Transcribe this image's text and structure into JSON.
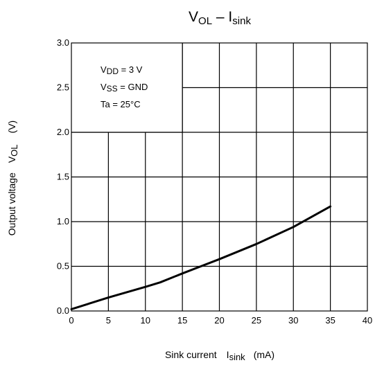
{
  "chart_data": {
    "type": "line",
    "title": {
      "main": "V",
      "main_sub": "OL",
      "sep": " – ",
      "second": "I",
      "second_sub": "sink"
    },
    "xlabel": {
      "prefix": "Sink current",
      "symbol": "I",
      "symbol_sub": "sink",
      "unit": "(mA)"
    },
    "ylabel": {
      "prefix": "Output voltage",
      "symbol": "V",
      "symbol_sub": "OL",
      "unit": "(V)"
    },
    "xlim": [
      0,
      40
    ],
    "ylim": [
      0,
      3.0
    ],
    "x_ticks": [
      "0",
      "5",
      "10",
      "15",
      "20",
      "25",
      "30",
      "35",
      "40"
    ],
    "y_ticks": [
      "0.0",
      "0.5",
      "1.0",
      "1.5",
      "2.0",
      "2.5",
      "3.0"
    ],
    "grid": true,
    "conditions": [
      {
        "symbol": "V",
        "sub": "DD",
        "rest": " = 3 V"
      },
      {
        "symbol": "V",
        "sub": "SS",
        "rest": " = GND"
      },
      {
        "symbol": "Ta",
        "sub": "",
        "rest": " = 25°C"
      }
    ],
    "series": [
      {
        "x": [
          0,
          5,
          10,
          12,
          15,
          17.5,
          20,
          25,
          30,
          35
        ],
        "y": [
          0.02,
          0.15,
          0.27,
          0.32,
          0.42,
          0.5,
          0.58,
          0.75,
          0.94,
          1.17
        ]
      }
    ]
  }
}
